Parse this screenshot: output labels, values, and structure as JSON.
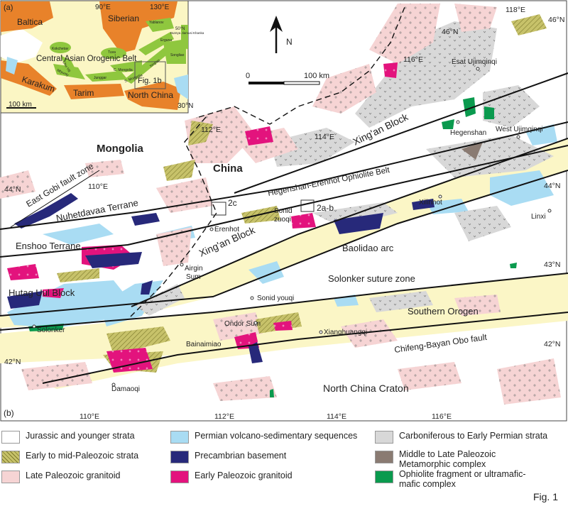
{
  "inset": {
    "panel_label": "(a)",
    "cratons": [
      "Baltica",
      "Siberian",
      "Karakum",
      "Tarim",
      "North China"
    ],
    "belt": "Central Asian Orogenic Belt",
    "terranes": [
      "Kokchetav",
      "Chu-Yili",
      "Mtyunty",
      "Tuva",
      "Junggar",
      "C. Mongolia",
      "S. Mongolia",
      "Xing'an",
      "Yablanov",
      "Erguna",
      "Songliao",
      "Bureya Jiamusi Khanka"
    ],
    "graticule": [
      "90°E",
      "130°E",
      "50°N",
      "30°N"
    ],
    "frame_label": "Fig. 1b",
    "scale": "100 km"
  },
  "main": {
    "panel_label": "(b)",
    "north": "N",
    "scale": {
      "zero": "0",
      "length": "100 km"
    },
    "countries": [
      "Mongolia",
      "China"
    ],
    "units": {
      "east_gobi": "East Gobi fault zone",
      "nuhetdavaa": "Nuhetdavaa Terrane",
      "enshoo": "Enshoo Terrane",
      "hutag": "Hutag Uul Block",
      "hegenshan_belt": "Hegenshan-Erenhot Ophiolite Belt",
      "xingan_lower": "Xing'an Block",
      "xingan_upper": "Xing'an Block",
      "baolidao": "Baolidao arc",
      "solonker_zone": "Solonker suture zone",
      "southern_orogen": "Southern Orogen",
      "chifeng": "Chifeng-Bayan Obo fault",
      "ncc": "North China Craton"
    },
    "places": {
      "solonker": "Solonker",
      "airgin1": "Airgin",
      "airgin2": "Sum",
      "erenhot": "Erenhot",
      "sonid1": "Sonid",
      "sonid2": "zuoqi",
      "sonid_youqi": "Sonid youqi",
      "ondor": "Ondor Sum",
      "xiang": "Xianghuangqi",
      "bainaimiao": "Bainaimiao",
      "damaoqi": "Damaoqi",
      "xilinhot": "Xilinhot",
      "linxi": "Linxi",
      "hegenshan": "Hegenshan",
      "west_uj": "West Ujimqinqi",
      "esat_uj": "Esat Ujimqinqi"
    },
    "study_boxes": [
      "2c",
      "2a-b"
    ],
    "graticule": {
      "bottom": [
        "110°E",
        "112°E",
        "114°E",
        "116°E"
      ],
      "inner": [
        "110°E",
        "112°E",
        "114°E",
        "116°E",
        "118°E",
        "46°N",
        "46°N"
      ],
      "left": [
        "44°N",
        "42°N"
      ],
      "right": [
        "44°N",
        "43°N",
        "42°N"
      ]
    }
  },
  "legend": [
    {
      "label": "Jurassic and younger strata",
      "color": "#ffffff"
    },
    {
      "label": "Early to mid-Paleozoic strata",
      "color": "#b5b25a"
    },
    {
      "label": "Late Paleozoic granitoid",
      "color": "#f6d4d4"
    },
    {
      "label": "Permian volcano-sedimentary sequences",
      "color": "#a9dcf3"
    },
    {
      "label": "Precambrian basement",
      "color": "#27297a"
    },
    {
      "label": "Early Paleozoic granitoid",
      "color": "#e3137d"
    },
    {
      "label": "Carboniferous to Early Permian  strata",
      "color": "#d8d8d8"
    },
    {
      "label": "Middle to Late Paleozoic Metamorphic complex",
      "color": "#8a7b72"
    },
    {
      "label": "Ophiolite fragment or ultramafic-mafic complex",
      "color": "#0a9a4e"
    }
  ],
  "colors": {
    "craton": "#e8822a",
    "belt": "#fbf6c4",
    "terrane": "#8fc73e",
    "band": "#fbf6c6",
    "water": "#a9dcf3"
  },
  "figure_label": "Fig. 1"
}
